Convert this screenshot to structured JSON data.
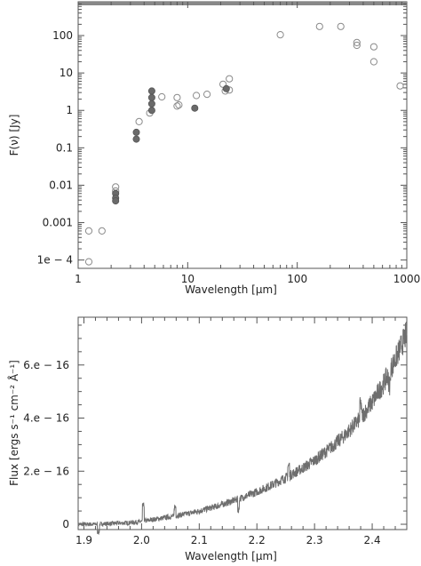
{
  "chart_data": [
    {
      "type": "scatter",
      "title": "",
      "xlabel": "Wavelength [μm]",
      "ylabel": "F(ν) [Jy]",
      "xscale": "log",
      "yscale": "log",
      "xlim": [
        1,
        1000
      ],
      "ylim": [
        6e-05,
        800
      ],
      "x_ticks": [
        {
          "value": 1,
          "label": "1"
        },
        {
          "value": 10,
          "label": "10"
        },
        {
          "value": 100,
          "label": "100"
        },
        {
          "value": 1000,
          "label": "1000"
        }
      ],
      "y_ticks": [
        {
          "value": 0.0001,
          "label": "1e − 4"
        },
        {
          "value": 0.001,
          "label": "0.001"
        },
        {
          "value": 0.01,
          "label": "0.01"
        },
        {
          "value": 0.1,
          "label": "0.1"
        },
        {
          "value": 1,
          "label": "1"
        },
        {
          "value": 10,
          "label": "10"
        },
        {
          "value": 100,
          "label": "100"
        }
      ],
      "series": [
        {
          "marker": "open-circle",
          "points": [
            [
              1.25,
              0.0006
            ],
            [
              1.25,
              9e-05
            ],
            [
              1.65,
              0.0006
            ],
            [
              2.2,
              0.009
            ],
            [
              2.2,
              0.007
            ],
            [
              3.6,
              0.5
            ],
            [
              4.5,
              0.85
            ],
            [
              5.8,
              2.3
            ],
            [
              8.0,
              1.3
            ],
            [
              8.0,
              2.2
            ],
            [
              8.3,
              1.4
            ],
            [
              12,
              2.5
            ],
            [
              15,
              2.7
            ],
            [
              21,
              5.0
            ],
            [
              22,
              3.3
            ],
            [
              24,
              7.0
            ],
            [
              24,
              3.5
            ],
            [
              70,
              105
            ],
            [
              160,
              175
            ],
            [
              250,
              175
            ],
            [
              350,
              65
            ],
            [
              350,
              55
            ],
            [
              500,
              50
            ],
            [
              500,
              20
            ],
            [
              870,
              4.5
            ]
          ]
        },
        {
          "marker": "filled-circle",
          "points": [
            [
              2.2,
              0.006
            ],
            [
              2.2,
              0.0045
            ],
            [
              2.2,
              0.0038
            ],
            [
              3.4,
              0.26
            ],
            [
              3.4,
              0.17
            ],
            [
              4.7,
              3.3
            ],
            [
              4.7,
              2.2
            ],
            [
              4.7,
              1.5
            ],
            [
              4.7,
              1.0
            ],
            [
              11.6,
              1.15
            ],
            [
              22.5,
              3.8
            ]
          ]
        }
      ]
    },
    {
      "type": "line",
      "title": "",
      "xlabel": "Wavelength [μm]",
      "ylabel": "Flux [ergs s⁻¹ cm⁻² Å⁻¹]",
      "xlim": [
        1.89,
        2.46
      ],
      "ylim": [
        -0.02,
        0.78
      ],
      "y_unit": "1e-15",
      "x_ticks": [
        {
          "value": 1.9,
          "label": "1.9"
        },
        {
          "value": 2.0,
          "label": "2.0"
        },
        {
          "value": 2.1,
          "label": "2.1"
        },
        {
          "value": 2.2,
          "label": "2.2"
        },
        {
          "value": 2.3,
          "label": "2.3"
        },
        {
          "value": 2.4,
          "label": "2.4"
        }
      ],
      "y_ticks": [
        {
          "value": 0,
          "label": "0"
        },
        {
          "value": 0.2,
          "label": "2.e − 16"
        },
        {
          "value": 0.4,
          "label": "4.e − 16"
        },
        {
          "value": 0.6,
          "label": "6.e − 16"
        }
      ],
      "x": [
        1.89,
        1.92,
        1.95,
        1.98,
        2.0,
        2.02,
        2.05,
        2.08,
        2.1,
        2.13,
        2.15,
        2.18,
        2.2,
        2.23,
        2.25,
        2.28,
        2.3,
        2.33,
        2.35,
        2.38,
        2.4,
        2.42,
        2.44,
        2.46
      ],
      "y": [
        0.0,
        0.0,
        0.003,
        0.006,
        0.01,
        0.018,
        0.028,
        0.04,
        0.05,
        0.068,
        0.082,
        0.105,
        0.122,
        0.152,
        0.175,
        0.212,
        0.24,
        0.292,
        0.33,
        0.4,
        0.46,
        0.53,
        0.62,
        0.72
      ]
    }
  ]
}
